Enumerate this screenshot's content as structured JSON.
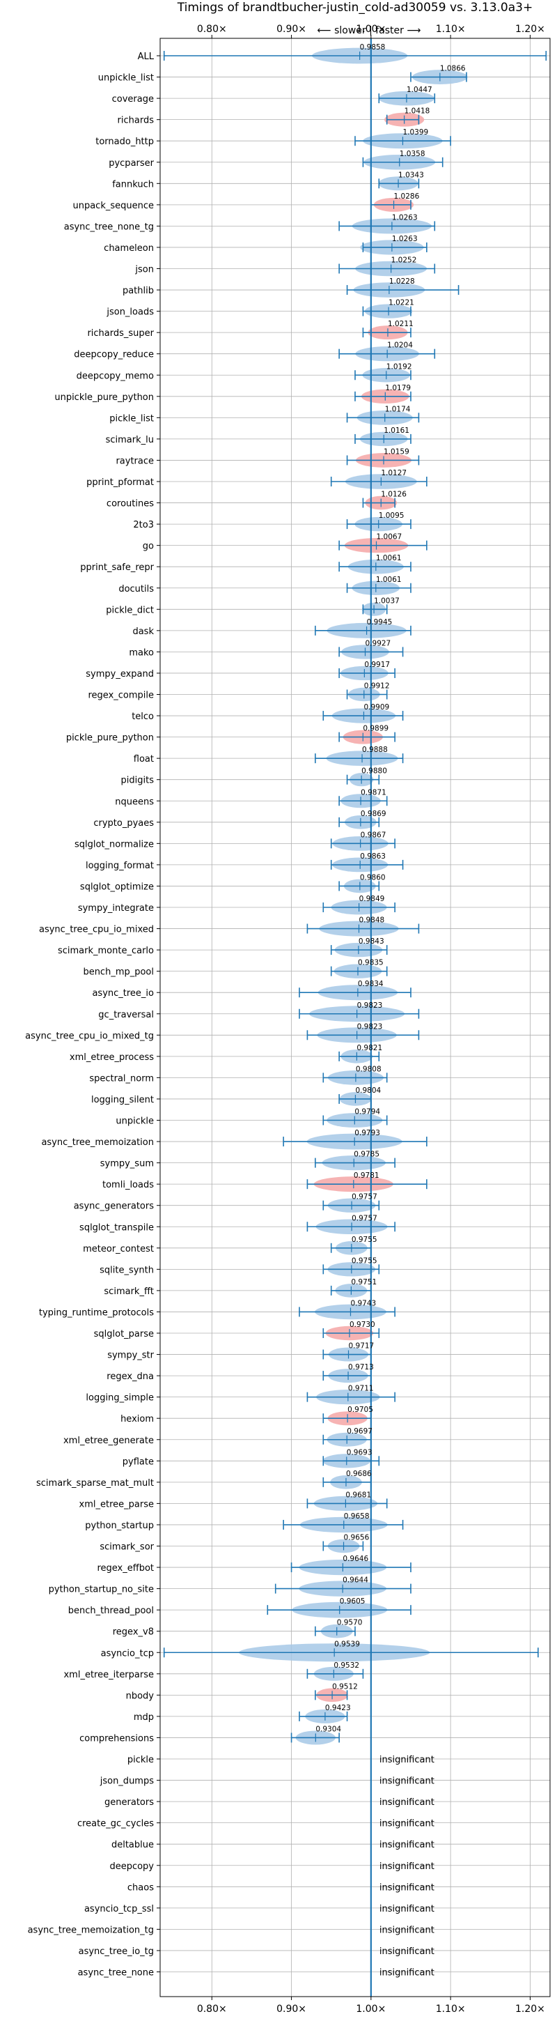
{
  "chart_data": {
    "type": "violin",
    "title": "Timings of brandtbucher-justin_cold-ad30059 vs. 3.13.0a3+",
    "subtitle": "⟵ slower | faster ⟶",
    "xlim": [
      0.735,
      1.225
    ],
    "xticks": [
      0.8,
      0.9,
      1.0,
      1.1,
      1.2
    ],
    "xtick_labels": [
      "0.80×",
      "0.90×",
      "1.00×",
      "1.10×",
      "1.20×"
    ],
    "reference_line": 1.0,
    "grid": true,
    "colors": {
      "axis": "#000000",
      "grid": "#b0b0b0",
      "line": "#1f77b4",
      "violin": "#a6c8e6",
      "violin_highlight": "#f4a6a6"
    },
    "insignificant_label": "insignificant",
    "benchmarks": [
      {
        "name": "ALL",
        "value": 0.9858,
        "label": "0.9858",
        "lo": 0.74,
        "hi": 1.22,
        "spread": 0.06
      },
      {
        "name": "unpickle_list",
        "value": 1.0866,
        "label": "1.0866",
        "lo": 1.05,
        "hi": 1.12,
        "spread": 0.035
      },
      {
        "name": "coverage",
        "value": 1.0447,
        "label": "1.0447",
        "lo": 1.01,
        "hi": 1.08,
        "spread": 0.035
      },
      {
        "name": "richards",
        "value": 1.0418,
        "label": "1.0418",
        "lo": 1.02,
        "hi": 1.06,
        "spread": 0.025,
        "highlight": true
      },
      {
        "name": "tornado_http",
        "value": 1.0399,
        "label": "1.0399",
        "lo": 0.98,
        "hi": 1.1,
        "spread": 0.05
      },
      {
        "name": "pycparser",
        "value": 1.0358,
        "label": "1.0358",
        "lo": 0.99,
        "hi": 1.09,
        "spread": 0.045
      },
      {
        "name": "fannkuch",
        "value": 1.0343,
        "label": "1.0343",
        "lo": 1.01,
        "hi": 1.06,
        "spread": 0.025
      },
      {
        "name": "unpack_sequence",
        "value": 1.0286,
        "label": "1.0286",
        "lo": 1.0,
        "hi": 1.05,
        "spread": 0.025,
        "highlight": true
      },
      {
        "name": "async_tree_none_tg",
        "value": 1.0263,
        "label": "1.0263",
        "lo": 0.96,
        "hi": 1.08,
        "spread": 0.05
      },
      {
        "name": "chameleon",
        "value": 1.0263,
        "label": "1.0263",
        "lo": 0.99,
        "hi": 1.07,
        "spread": 0.04
      },
      {
        "name": "json",
        "value": 1.0252,
        "label": "1.0252",
        "lo": 0.96,
        "hi": 1.08,
        "spread": 0.045
      },
      {
        "name": "pathlib",
        "value": 1.0228,
        "label": "1.0228",
        "lo": 0.97,
        "hi": 1.11,
        "spread": 0.045
      },
      {
        "name": "json_loads",
        "value": 1.0221,
        "label": "1.0221",
        "lo": 0.99,
        "hi": 1.05,
        "spread": 0.03
      },
      {
        "name": "richards_super",
        "value": 1.0211,
        "label": "1.0211",
        "lo": 0.99,
        "hi": 1.05,
        "spread": 0.025,
        "highlight": true
      },
      {
        "name": "deepcopy_reduce",
        "value": 1.0204,
        "label": "1.0204",
        "lo": 0.96,
        "hi": 1.08,
        "spread": 0.04
      },
      {
        "name": "deepcopy_memo",
        "value": 1.0192,
        "label": "1.0192",
        "lo": 0.98,
        "hi": 1.05,
        "spread": 0.03
      },
      {
        "name": "unpickle_pure_python",
        "value": 1.0179,
        "label": "1.0179",
        "lo": 0.98,
        "hi": 1.05,
        "spread": 0.03,
        "highlight": true
      },
      {
        "name": "pickle_list",
        "value": 1.0174,
        "label": "1.0174",
        "lo": 0.97,
        "hi": 1.06,
        "spread": 0.035
      },
      {
        "name": "scimark_lu",
        "value": 1.0161,
        "label": "1.0161",
        "lo": 0.98,
        "hi": 1.05,
        "spread": 0.03
      },
      {
        "name": "raytrace",
        "value": 1.0159,
        "label": "1.0159",
        "lo": 0.97,
        "hi": 1.06,
        "spread": 0.035,
        "highlight": true
      },
      {
        "name": "pprint_pformat",
        "value": 1.0127,
        "label": "1.0127",
        "lo": 0.95,
        "hi": 1.07,
        "spread": 0.045
      },
      {
        "name": "coroutines",
        "value": 1.0126,
        "label": "1.0126",
        "lo": 0.99,
        "hi": 1.03,
        "spread": 0.02,
        "highlight": true
      },
      {
        "name": "2to3",
        "value": 1.0095,
        "label": "1.0095",
        "lo": 0.97,
        "hi": 1.05,
        "spread": 0.03
      },
      {
        "name": "go",
        "value": 1.0067,
        "label": "1.0067",
        "lo": 0.96,
        "hi": 1.07,
        "spread": 0.04,
        "highlight": true
      },
      {
        "name": "pprint_safe_repr",
        "value": 1.0061,
        "label": "1.0061",
        "lo": 0.96,
        "hi": 1.05,
        "spread": 0.035
      },
      {
        "name": "docutils",
        "value": 1.0061,
        "label": "1.0061",
        "lo": 0.97,
        "hi": 1.05,
        "spread": 0.03
      },
      {
        "name": "pickle_dict",
        "value": 1.0037,
        "label": "1.0037",
        "lo": 0.99,
        "hi": 1.02,
        "spread": 0.015
      },
      {
        "name": "dask",
        "value": 0.9945,
        "label": "0.9945",
        "lo": 0.93,
        "hi": 1.05,
        "spread": 0.05
      },
      {
        "name": "mako",
        "value": 0.9927,
        "label": "0.9927",
        "lo": 0.96,
        "hi": 1.04,
        "spread": 0.03
      },
      {
        "name": "sympy_expand",
        "value": 0.9917,
        "label": "0.9917",
        "lo": 0.96,
        "hi": 1.03,
        "spread": 0.03
      },
      {
        "name": "regex_compile",
        "value": 0.9912,
        "label": "0.9912",
        "lo": 0.97,
        "hi": 1.02,
        "spread": 0.02
      },
      {
        "name": "telco",
        "value": 0.9909,
        "label": "0.9909",
        "lo": 0.94,
        "hi": 1.04,
        "spread": 0.04
      },
      {
        "name": "pickle_pure_python",
        "value": 0.9899,
        "label": "0.9899",
        "lo": 0.96,
        "hi": 1.03,
        "spread": 0.025,
        "highlight": true
      },
      {
        "name": "float",
        "value": 0.9888,
        "label": "0.9888",
        "lo": 0.93,
        "hi": 1.04,
        "spread": 0.045
      },
      {
        "name": "pidigits",
        "value": 0.988,
        "label": "0.9880",
        "lo": 0.97,
        "hi": 1.01,
        "spread": 0.015
      },
      {
        "name": "nqueens",
        "value": 0.9871,
        "label": "0.9871",
        "lo": 0.96,
        "hi": 1.02,
        "spread": 0.025
      },
      {
        "name": "crypto_pyaes",
        "value": 0.9869,
        "label": "0.9869",
        "lo": 0.96,
        "hi": 1.01,
        "spread": 0.02
      },
      {
        "name": "sqlglot_normalize",
        "value": 0.9867,
        "label": "0.9867",
        "lo": 0.95,
        "hi": 1.03,
        "spread": 0.035
      },
      {
        "name": "logging_format",
        "value": 0.9863,
        "label": "0.9863",
        "lo": 0.95,
        "hi": 1.04,
        "spread": 0.035
      },
      {
        "name": "sqlglot_optimize",
        "value": 0.986,
        "label": "0.9860",
        "lo": 0.96,
        "hi": 1.01,
        "spread": 0.02
      },
      {
        "name": "sympy_integrate",
        "value": 0.9849,
        "label": "0.9849",
        "lo": 0.94,
        "hi": 1.03,
        "spread": 0.035
      },
      {
        "name": "async_tree_cpu_io_mixed",
        "value": 0.9848,
        "label": "0.9848",
        "lo": 0.92,
        "hi": 1.06,
        "spread": 0.05
      },
      {
        "name": "scimark_monte_carlo",
        "value": 0.9843,
        "label": "0.9843",
        "lo": 0.95,
        "hi": 1.02,
        "spread": 0.03
      },
      {
        "name": "bench_mp_pool",
        "value": 0.9835,
        "label": "0.9835",
        "lo": 0.95,
        "hi": 1.02,
        "spread": 0.03
      },
      {
        "name": "async_tree_io",
        "value": 0.9834,
        "label": "0.9834",
        "lo": 0.91,
        "hi": 1.05,
        "spread": 0.05
      },
      {
        "name": "gc_traversal",
        "value": 0.9823,
        "label": "0.9823",
        "lo": 0.91,
        "hi": 1.06,
        "spread": 0.06
      },
      {
        "name": "async_tree_cpu_io_mixed_tg",
        "value": 0.9823,
        "label": "0.9823",
        "lo": 0.92,
        "hi": 1.06,
        "spread": 0.05
      },
      {
        "name": "xml_etree_process",
        "value": 0.9821,
        "label": "0.9821",
        "lo": 0.96,
        "hi": 1.01,
        "spread": 0.02
      },
      {
        "name": "spectral_norm",
        "value": 0.9808,
        "label": "0.9808",
        "lo": 0.94,
        "hi": 1.02,
        "spread": 0.035
      },
      {
        "name": "logging_silent",
        "value": 0.9804,
        "label": "0.9804",
        "lo": 0.96,
        "hi": 1.0,
        "spread": 0.02
      },
      {
        "name": "unpickle",
        "value": 0.9794,
        "label": "0.9794",
        "lo": 0.94,
        "hi": 1.02,
        "spread": 0.035
      },
      {
        "name": "async_tree_memoization",
        "value": 0.9793,
        "label": "0.9793",
        "lo": 0.89,
        "hi": 1.07,
        "spread": 0.06
      },
      {
        "name": "sympy_sum",
        "value": 0.9785,
        "label": "0.9785",
        "lo": 0.93,
        "hi": 1.03,
        "spread": 0.04
      },
      {
        "name": "tomli_loads",
        "value": 0.9781,
        "label": "0.9781",
        "lo": 0.92,
        "hi": 1.07,
        "spread": 0.05,
        "highlight": true
      },
      {
        "name": "async_generators",
        "value": 0.9757,
        "label": "0.9757",
        "lo": 0.94,
        "hi": 1.01,
        "spread": 0.03
      },
      {
        "name": "sqlglot_transpile",
        "value": 0.9757,
        "label": "0.9757",
        "lo": 0.92,
        "hi": 1.03,
        "spread": 0.045
      },
      {
        "name": "meteor_contest",
        "value": 0.9755,
        "label": "0.9755",
        "lo": 0.95,
        "hi": 1.0,
        "spread": 0.02
      },
      {
        "name": "sqlite_synth",
        "value": 0.9755,
        "label": "0.9755",
        "lo": 0.94,
        "hi": 1.01,
        "spread": 0.03
      },
      {
        "name": "scimark_fft",
        "value": 0.9751,
        "label": "0.9751",
        "lo": 0.95,
        "hi": 1.0,
        "spread": 0.02
      },
      {
        "name": "typing_runtime_protocols",
        "value": 0.9743,
        "label": "0.9743",
        "lo": 0.91,
        "hi": 1.03,
        "spread": 0.045
      },
      {
        "name": "sqlglot_parse",
        "value": 0.973,
        "label": "0.9730",
        "lo": 0.94,
        "hi": 1.01,
        "spread": 0.03,
        "highlight": true
      },
      {
        "name": "sympy_str",
        "value": 0.9717,
        "label": "0.9717",
        "lo": 0.94,
        "hi": 1.0,
        "spread": 0.025
      },
      {
        "name": "regex_dna",
        "value": 0.9713,
        "label": "0.9713",
        "lo": 0.94,
        "hi": 1.0,
        "spread": 0.025
      },
      {
        "name": "logging_simple",
        "value": 0.9711,
        "label": "0.9711",
        "lo": 0.92,
        "hi": 1.03,
        "spread": 0.04
      },
      {
        "name": "hexiom",
        "value": 0.9705,
        "label": "0.9705",
        "lo": 0.94,
        "hi": 1.0,
        "spread": 0.025,
        "highlight": true
      },
      {
        "name": "xml_etree_generate",
        "value": 0.9697,
        "label": "0.9697",
        "lo": 0.94,
        "hi": 1.0,
        "spread": 0.025
      },
      {
        "name": "pyflate",
        "value": 0.9693,
        "label": "0.9693",
        "lo": 0.94,
        "hi": 1.01,
        "spread": 0.03
      },
      {
        "name": "scimark_sparse_mat_mult",
        "value": 0.9686,
        "label": "0.9686",
        "lo": 0.94,
        "hi": 1.0,
        "spread": 0.02
      },
      {
        "name": "xml_etree_parse",
        "value": 0.9681,
        "label": "0.9681",
        "lo": 0.92,
        "hi": 1.02,
        "spread": 0.04
      },
      {
        "name": "python_startup",
        "value": 0.9658,
        "label": "0.9658",
        "lo": 0.89,
        "hi": 1.04,
        "spread": 0.055
      },
      {
        "name": "scimark_sor",
        "value": 0.9656,
        "label": "0.9656",
        "lo": 0.94,
        "hi": 0.99,
        "spread": 0.02
      },
      {
        "name": "regex_effbot",
        "value": 0.9646,
        "label": "0.9646",
        "lo": 0.9,
        "hi": 1.05,
        "spread": 0.055
      },
      {
        "name": "python_startup_no_site",
        "value": 0.9644,
        "label": "0.9644",
        "lo": 0.88,
        "hi": 1.05,
        "spread": 0.055
      },
      {
        "name": "bench_thread_pool",
        "value": 0.9605,
        "label": "0.9605",
        "lo": 0.87,
        "hi": 1.05,
        "spread": 0.06
      },
      {
        "name": "regex_v8",
        "value": 0.957,
        "label": "0.9570",
        "lo": 0.93,
        "hi": 0.98,
        "spread": 0.02
      },
      {
        "name": "asyncio_tcp",
        "value": 0.9539,
        "label": "0.9539",
        "lo": 0.74,
        "hi": 1.21,
        "spread": 0.12
      },
      {
        "name": "xml_etree_iterparse",
        "value": 0.9532,
        "label": "0.9532",
        "lo": 0.92,
        "hi": 0.99,
        "spread": 0.025
      },
      {
        "name": "nbody",
        "value": 0.9512,
        "label": "0.9512",
        "lo": 0.93,
        "hi": 0.97,
        "spread": 0.02,
        "highlight": true
      },
      {
        "name": "mdp",
        "value": 0.9423,
        "label": "0.9423",
        "lo": 0.91,
        "hi": 0.97,
        "spread": 0.025
      },
      {
        "name": "comprehensions",
        "value": 0.9304,
        "label": "0.9304",
        "lo": 0.9,
        "hi": 0.96,
        "spread": 0.025
      },
      {
        "name": "pickle",
        "insignificant": true
      },
      {
        "name": "json_dumps",
        "insignificant": true
      },
      {
        "name": "generators",
        "insignificant": true
      },
      {
        "name": "create_gc_cycles",
        "insignificant": true
      },
      {
        "name": "deltablue",
        "insignificant": true
      },
      {
        "name": "deepcopy",
        "insignificant": true
      },
      {
        "name": "chaos",
        "insignificant": true
      },
      {
        "name": "asyncio_tcp_ssl",
        "insignificant": true
      },
      {
        "name": "async_tree_memoization_tg",
        "insignificant": true
      },
      {
        "name": "async_tree_io_tg",
        "insignificant": true
      },
      {
        "name": "async_tree_none",
        "insignificant": true
      }
    ]
  }
}
